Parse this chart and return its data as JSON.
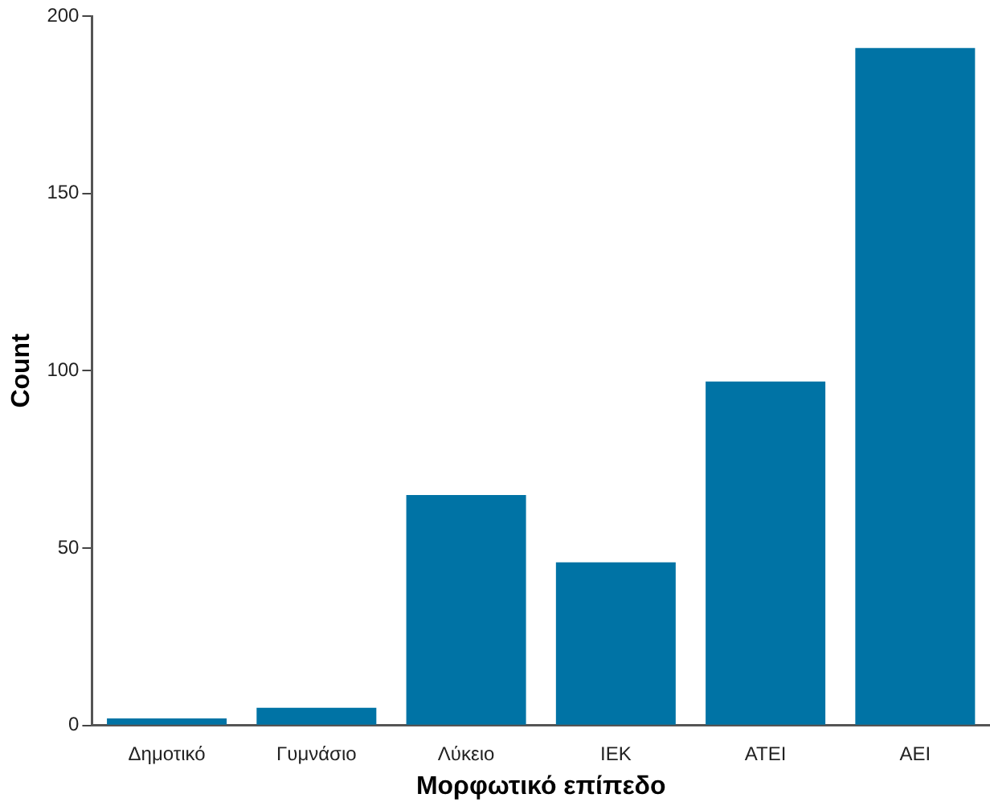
{
  "chart_data": {
    "type": "bar",
    "xlabel": "Μορφωτικό επίπεδο",
    "ylabel": "Count",
    "categories": [
      "Δημοτικό",
      "Γυμνάσιο",
      "Λύκειο",
      "ΙΕΚ",
      "ΑΤΕΙ",
      "ΑΕΙ"
    ],
    "values": [
      2,
      5,
      65,
      46,
      97,
      191
    ],
    "color": "#0073a5",
    "ylim": [
      0,
      200
    ],
    "yticks": [
      0,
      50,
      100,
      150,
      200
    ],
    "grid": false,
    "legend": false
  }
}
